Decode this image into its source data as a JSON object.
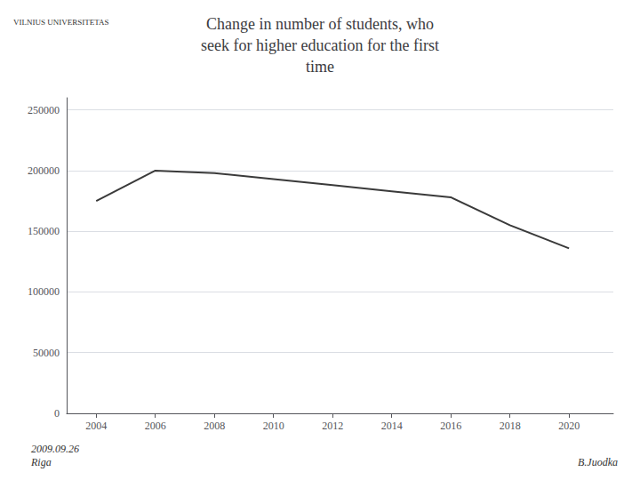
{
  "chart_data": {
    "type": "line",
    "title": "Change in number of students, who\nseek for higher education for the first\ntime",
    "x": [
      2004,
      2006,
      2008,
      2010,
      2012,
      2014,
      2016,
      2018,
      2020
    ],
    "values": [
      175000,
      200000,
      198000,
      193000,
      188000,
      183000,
      178000,
      155000,
      136000
    ],
    "color": "#3a3a3a",
    "xlim": [
      2003,
      2021.5
    ],
    "ylim": [
      0,
      260000
    ],
    "xticks": [
      2004,
      2006,
      2008,
      2010,
      2012,
      2014,
      2016,
      2018,
      2020
    ],
    "yticks": [
      0,
      50000,
      100000,
      150000,
      200000,
      250000
    ],
    "grid": true,
    "annotations": [
      "2009.09.26\nRiga",
      "B.Juodka",
      "VILNIUS UNIVERSITETAS"
    ]
  }
}
